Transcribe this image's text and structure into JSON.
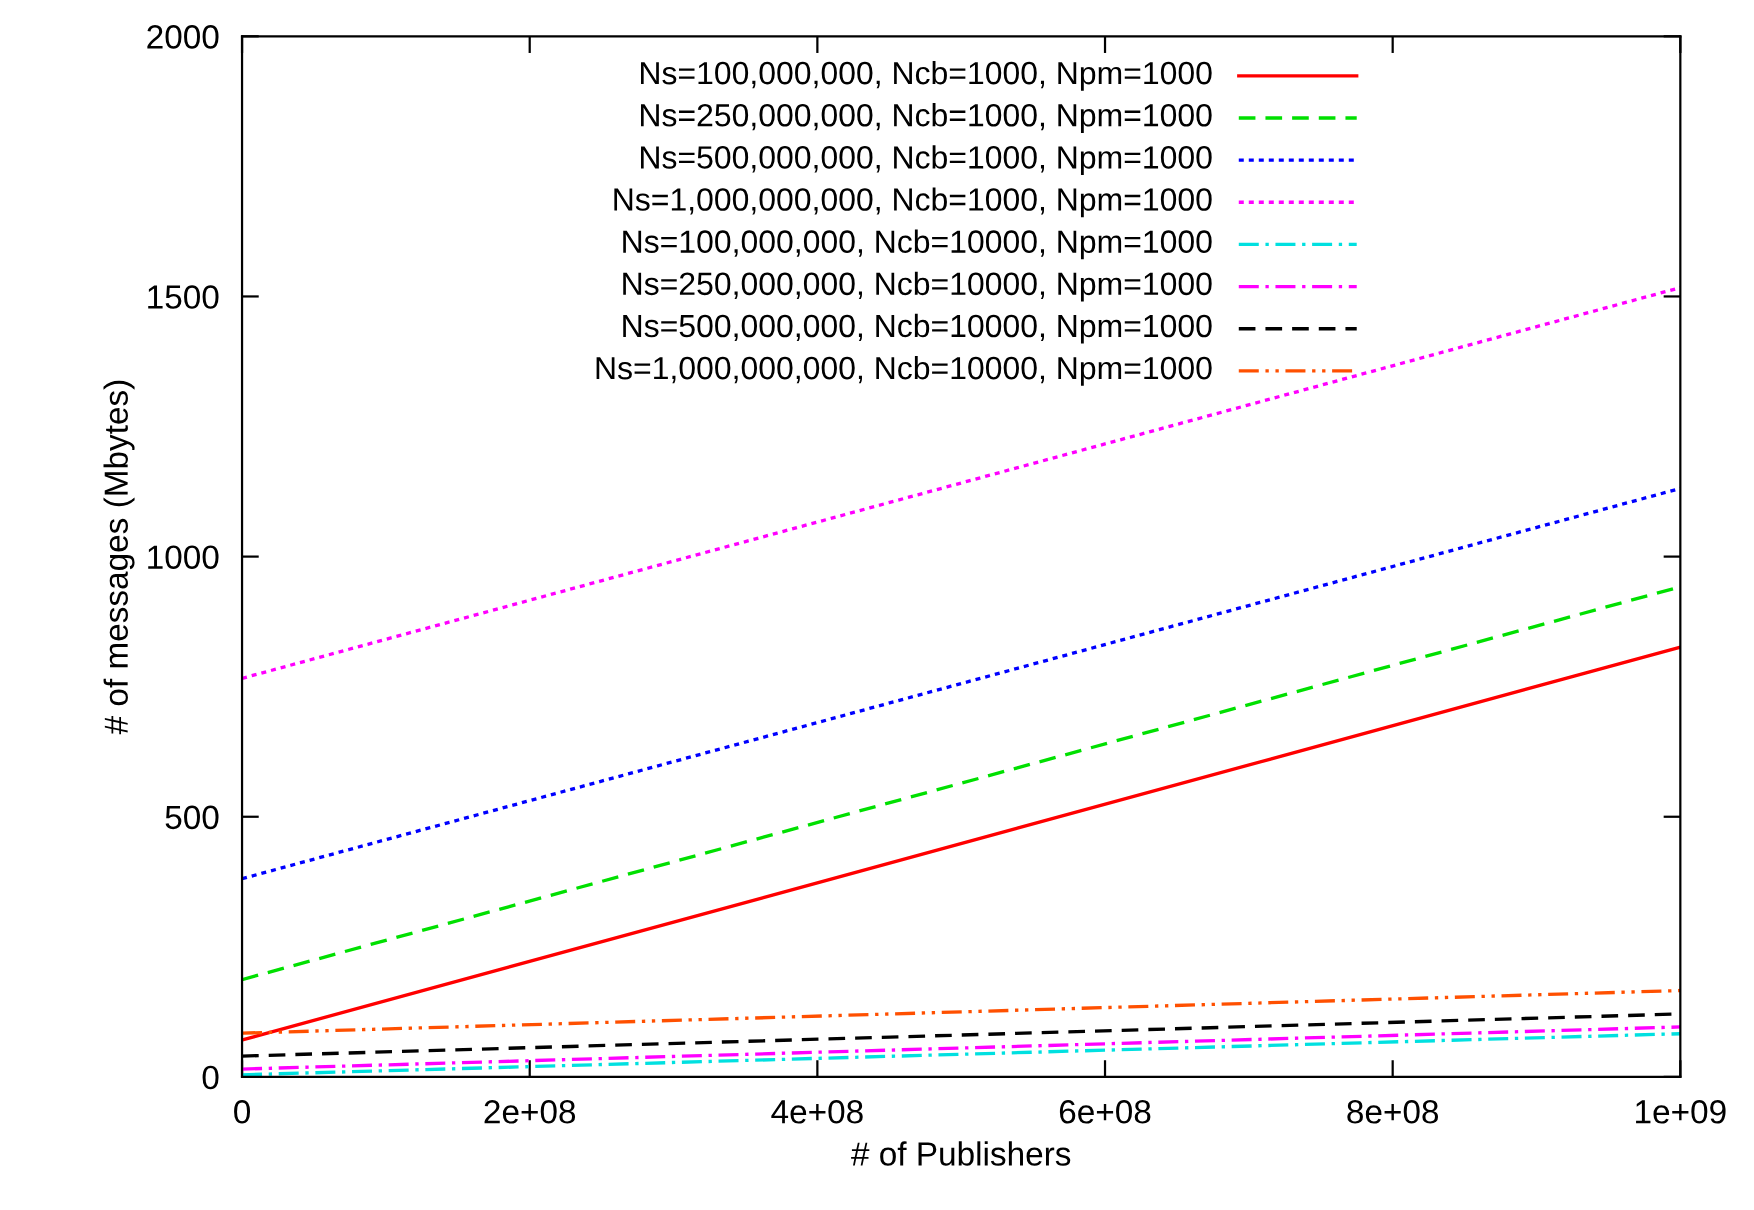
{
  "chart_data": {
    "type": "line",
    "xlabel": "# of Publishers",
    "ylabel": "# of messages (Mbytes)",
    "x": [
      0,
      1000000000
    ],
    "xlim": [
      0,
      1000000000
    ],
    "ylim": [
      0,
      2000
    ],
    "xticks": [
      {
        "value": 0,
        "label": "0"
      },
      {
        "value": 200000000,
        "label": "2e+08"
      },
      {
        "value": 400000000,
        "label": "4e+08"
      },
      {
        "value": 600000000,
        "label": "6e+08"
      },
      {
        "value": 800000000,
        "label": "8e+08"
      },
      {
        "value": 1000000000,
        "label": "1e+09"
      }
    ],
    "yticks": [
      0,
      500,
      1000,
      1500,
      2000
    ],
    "grid": false,
    "legend": "top right",
    "marker": "none",
    "series": [
      {
        "name": "Ns=100,000,000, Ncb=1000, Npm=1000",
        "color": "#ff0000",
        "line_style": "solid",
        "values": [
          71,
          826
        ]
      },
      {
        "name": "Ns=250,000,000, Ncb=1000, Npm=1000",
        "color": "#00e000",
        "line_style": "dashed",
        "values": [
          187,
          942
        ]
      },
      {
        "name": "Ns=500,000,000, Ncb=1000, Npm=1000",
        "color": "#0000ff",
        "line_style": "dotted",
        "values": [
          381,
          1131
        ]
      },
      {
        "name": "Ns=1,000,000,000, Ncb=1000, Npm=1000",
        "color": "#ff00ff",
        "line_style": "dotted",
        "values": [
          766,
          1517
        ]
      },
      {
        "name": "Ns=100,000,000, Ncb=10000, Npm=1000",
        "color": "#00e0e0",
        "line_style": "dashdot",
        "values": [
          4,
          83
        ]
      },
      {
        "name": "Ns=250,000,000, Ncb=10000, Npm=1000",
        "color": "#ff00ff",
        "line_style": "dashdot",
        "values": [
          15,
          96
        ]
      },
      {
        "name": "Ns=500,000,000, Ncb=10000, Npm=1000",
        "color": "#000000",
        "line_style": "dashed",
        "values": [
          40,
          121
        ]
      },
      {
        "name": "Ns=1,000,000,000, Ncb=10000, Npm=1000",
        "color": "#ff5000",
        "line_style": "dashdotdot",
        "values": [
          84,
          166
        ]
      }
    ]
  }
}
